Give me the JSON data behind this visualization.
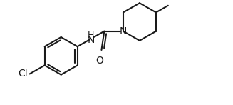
{
  "background": "#ffffff",
  "line_color": "#1a1a1a",
  "line_width": 1.5,
  "font_size_atom": 10,
  "fig_width": 3.27,
  "fig_height": 1.47,
  "dpi": 100,
  "xlim": [
    0,
    10
  ],
  "ylim": [
    0,
    4.5
  ]
}
